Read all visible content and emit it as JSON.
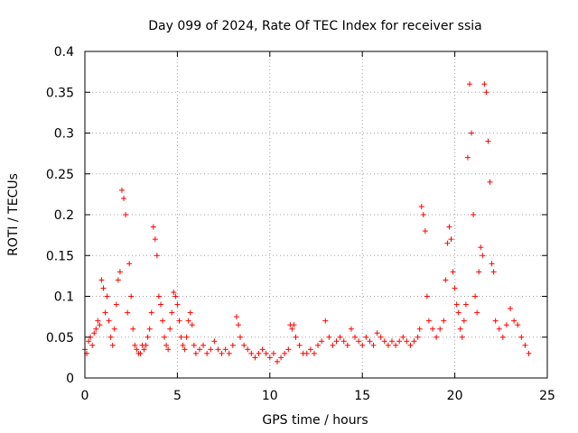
{
  "chart_data": {
    "type": "scatter",
    "title": "Day 099 of 2024, Rate Of TEC Index for receiver ssia",
    "xlabel": "GPS time / hours",
    "ylabel": "ROTI / TECUs",
    "xlim": [
      0,
      25
    ],
    "ylim": [
      0,
      0.4
    ],
    "xticks": [
      0,
      5,
      10,
      15,
      20,
      25
    ],
    "yticks": [
      0,
      0.05,
      0.1,
      0.15,
      0.2,
      0.25,
      0.3,
      0.35,
      0.4
    ],
    "xtick_labels": [
      "0",
      "5",
      "10",
      "15",
      "20",
      "25"
    ],
    "ytick_labels": [
      "0",
      "0.05",
      "0.1",
      "0.15",
      "0.2",
      "0.25",
      "0.3",
      "0.35",
      "0.4"
    ],
    "grid": true,
    "marker": "+",
    "marker_color": "#ff0000",
    "series": [
      {
        "name": "ROTI",
        "x": [
          0.0,
          0.1,
          0.2,
          0.3,
          0.4,
          0.5,
          0.6,
          0.7,
          0.8,
          0.9,
          1.0,
          1.1,
          1.2,
          1.3,
          1.4,
          1.5,
          1.6,
          1.7,
          1.8,
          1.9,
          2.0,
          2.1,
          2.2,
          2.3,
          2.4,
          2.5,
          2.6,
          2.7,
          2.8,
          2.9,
          3.0,
          3.1,
          3.2,
          3.3,
          3.4,
          3.5,
          3.6,
          3.7,
          3.8,
          3.9,
          4.0,
          4.1,
          4.2,
          4.3,
          4.4,
          4.5,
          4.6,
          4.7,
          4.8,
          4.9,
          5.0,
          5.1,
          5.2,
          5.3,
          5.4,
          5.5,
          5.6,
          5.7,
          5.8,
          5.9,
          6.0,
          6.2,
          6.4,
          6.6,
          6.8,
          7.0,
          7.2,
          7.4,
          7.6,
          7.8,
          8.0,
          8.2,
          8.3,
          8.4,
          8.6,
          8.8,
          9.0,
          9.2,
          9.4,
          9.6,
          9.8,
          10.0,
          10.2,
          10.4,
          10.6,
          10.8,
          11.0,
          11.1,
          11.2,
          11.3,
          11.4,
          11.6,
          11.8,
          12.0,
          12.2,
          12.4,
          12.6,
          12.8,
          13.0,
          13.2,
          13.4,
          13.6,
          13.8,
          14.0,
          14.2,
          14.4,
          14.6,
          14.8,
          15.0,
          15.2,
          15.4,
          15.6,
          15.8,
          16.0,
          16.2,
          16.4,
          16.6,
          16.8,
          17.0,
          17.2,
          17.4,
          17.6,
          17.8,
          18.0,
          18.1,
          18.2,
          18.3,
          18.4,
          18.5,
          18.6,
          18.8,
          19.0,
          19.2,
          19.4,
          19.5,
          19.6,
          19.7,
          19.8,
          19.9,
          20.0,
          20.1,
          20.2,
          20.3,
          20.4,
          20.5,
          20.6,
          20.7,
          20.8,
          20.9,
          21.0,
          21.1,
          21.2,
          21.3,
          21.4,
          21.5,
          21.6,
          21.7,
          21.8,
          21.9,
          22.0,
          22.1,
          22.2,
          22.4,
          22.6,
          22.8,
          23.0,
          23.2,
          23.4,
          23.6,
          23.8,
          24.0
        ],
        "y": [
          0.035,
          0.03,
          0.045,
          0.05,
          0.04,
          0.055,
          0.06,
          0.07,
          0.065,
          0.12,
          0.11,
          0.08,
          0.1,
          0.07,
          0.05,
          0.04,
          0.06,
          0.09,
          0.12,
          0.13,
          0.23,
          0.22,
          0.2,
          0.08,
          0.14,
          0.1,
          0.06,
          0.04,
          0.035,
          0.03,
          0.03,
          0.04,
          0.035,
          0.04,
          0.05,
          0.06,
          0.08,
          0.185,
          0.17,
          0.15,
          0.1,
          0.09,
          0.07,
          0.05,
          0.04,
          0.035,
          0.06,
          0.08,
          0.105,
          0.1,
          0.09,
          0.07,
          0.05,
          0.04,
          0.035,
          0.05,
          0.07,
          0.08,
          0.065,
          0.04,
          0.03,
          0.035,
          0.04,
          0.03,
          0.035,
          0.045,
          0.035,
          0.03,
          0.035,
          0.03,
          0.04,
          0.075,
          0.065,
          0.05,
          0.04,
          0.035,
          0.03,
          0.025,
          0.03,
          0.035,
          0.03,
          0.025,
          0.03,
          0.02,
          0.025,
          0.03,
          0.035,
          0.065,
          0.06,
          0.065,
          0.05,
          0.04,
          0.03,
          0.03,
          0.035,
          0.03,
          0.04,
          0.045,
          0.07,
          0.05,
          0.04,
          0.045,
          0.05,
          0.045,
          0.04,
          0.06,
          0.05,
          0.045,
          0.04,
          0.05,
          0.045,
          0.04,
          0.055,
          0.05,
          0.045,
          0.04,
          0.045,
          0.04,
          0.045,
          0.05,
          0.045,
          0.04,
          0.045,
          0.05,
          0.06,
          0.21,
          0.2,
          0.18,
          0.1,
          0.07,
          0.06,
          0.05,
          0.06,
          0.07,
          0.12,
          0.165,
          0.185,
          0.17,
          0.13,
          0.11,
          0.09,
          0.08,
          0.06,
          0.05,
          0.07,
          0.09,
          0.27,
          0.36,
          0.3,
          0.2,
          0.1,
          0.08,
          0.13,
          0.16,
          0.15,
          0.36,
          0.35,
          0.29,
          0.24,
          0.14,
          0.13,
          0.07,
          0.06,
          0.05,
          0.065,
          0.085,
          0.07,
          0.065,
          0.05,
          0.04,
          0.03
        ]
      }
    ]
  }
}
